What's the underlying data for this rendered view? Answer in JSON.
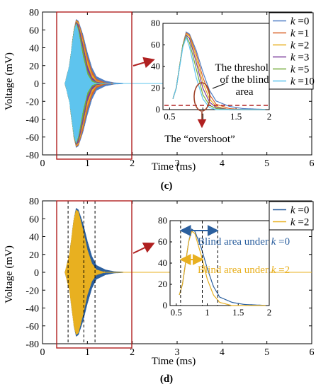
{
  "chart_data": [
    {
      "type": "line",
      "panel_label": "(c)",
      "xlabel": "Time (ms)",
      "ylabel": "Voltage (mV)",
      "xlim": [
        0,
        6
      ],
      "ylim": [
        -80,
        80
      ],
      "xticks": [
        "0",
        "1",
        "2",
        "3",
        "4",
        "5",
        "6"
      ],
      "yticks": [
        "80",
        "60",
        "40",
        "20",
        "0",
        "-20",
        "-40",
        "-60",
        "-80"
      ],
      "legend_position": "top-right",
      "series": [
        {
          "name_prefix": "k",
          "name_value": " =0",
          "color": "#4f7ec4",
          "peak": 72,
          "x": [
            0.5,
            0.6,
            0.7,
            0.75,
            0.8,
            0.9,
            1.0,
            1.1,
            1.2,
            1.4,
            1.6,
            2.0
          ],
          "envelope": [
            0,
            20,
            60,
            72,
            70,
            55,
            35,
            18,
            8,
            3,
            1,
            0
          ]
        },
        {
          "name_prefix": "k",
          "name_value": " =1",
          "color": "#d9642a",
          "peak": 71,
          "x": [
            0.5,
            0.6,
            0.7,
            0.75,
            0.8,
            0.9,
            1.0,
            1.1,
            1.2,
            1.4,
            1.6,
            2.0
          ],
          "envelope": [
            0,
            20,
            60,
            71,
            69,
            52,
            30,
            14,
            5,
            1,
            0,
            0
          ]
        },
        {
          "name_prefix": "k",
          "name_value": " =2",
          "color": "#e8b020",
          "peak": 70,
          "x": [
            0.5,
            0.6,
            0.7,
            0.75,
            0.8,
            0.9,
            1.0,
            1.1,
            1.2,
            1.4,
            1.6,
            2.0
          ],
          "envelope": [
            0,
            20,
            60,
            70,
            68,
            48,
            25,
            10,
            3,
            0,
            0,
            0
          ]
        },
        {
          "name_prefix": "k",
          "name_value": " =3",
          "color": "#7b3c9a",
          "peak": 69,
          "x": [
            0.5,
            0.6,
            0.7,
            0.75,
            0.8,
            0.9,
            1.0,
            1.1,
            1.2,
            1.4,
            1.6,
            2.0
          ],
          "envelope": [
            0,
            20,
            60,
            69,
            66,
            44,
            20,
            7,
            2,
            0,
            0,
            0
          ]
        },
        {
          "name_prefix": "k",
          "name_value": " =5",
          "color": "#74ab3c",
          "peak": 68,
          "x": [
            0.5,
            0.6,
            0.7,
            0.75,
            0.8,
            0.9,
            1.0,
            1.1,
            1.2,
            1.4,
            1.6,
            2.0
          ],
          "envelope": [
            0,
            20,
            60,
            68,
            62,
            38,
            14,
            4,
            1,
            0,
            0,
            0
          ]
        },
        {
          "name_prefix": "k",
          "name_value": " =10",
          "color": "#5ec4ee",
          "peak": 67,
          "x": [
            0.5,
            0.6,
            0.7,
            0.75,
            0.8,
            0.9,
            1.0,
            1.1,
            1.2,
            1.4,
            1.6,
            2.0
          ],
          "envelope": [
            0,
            20,
            58,
            67,
            58,
            30,
            10,
            2,
            0,
            0,
            0,
            0
          ]
        }
      ],
      "inset": {
        "xlim": [
          0.4,
          2
        ],
        "ylim": [
          0,
          80
        ],
        "xticks": [
          "0.5",
          "1",
          "1.5",
          "2"
        ],
        "yticks": [
          "80",
          "60",
          "40",
          "20",
          "0"
        ],
        "threshold_label_lines": [
          "The threshold",
          "of the blind",
          "area"
        ],
        "overshoot_label": "The “overshoot”"
      }
    },
    {
      "type": "line",
      "panel_label": "(d)",
      "xlabel": "Time (ms)",
      "ylabel": "Voltage (mV)",
      "xlim": [
        0,
        6
      ],
      "ylim": [
        -80,
        80
      ],
      "xticks": [
        "0",
        "1",
        "2",
        "3",
        "4",
        "5",
        "6"
      ],
      "yticks": [
        "80",
        "60",
        "40",
        "20",
        "0",
        "-20",
        "-40",
        "-60",
        "-80"
      ],
      "legend_position": "top-right",
      "series": [
        {
          "name_prefix": "k",
          "name_value": " =0",
          "color": "#2b5f9e",
          "peak": 72,
          "x": [
            0.5,
            0.6,
            0.7,
            0.75,
            0.8,
            0.9,
            1.0,
            1.1,
            1.2,
            1.4,
            1.6,
            2.0
          ],
          "envelope": [
            0,
            20,
            60,
            72,
            70,
            55,
            35,
            18,
            8,
            3,
            1,
            0
          ]
        },
        {
          "name_prefix": "k",
          "name_value": " =2",
          "color": "#e8b020",
          "peak": 70,
          "x": [
            0.5,
            0.6,
            0.7,
            0.75,
            0.8,
            0.9,
            1.0,
            1.1,
            1.2,
            1.4,
            1.6,
            2.0
          ],
          "envelope": [
            0,
            20,
            60,
            70,
            68,
            48,
            25,
            10,
            3,
            0,
            0,
            0
          ]
        }
      ],
      "blind_area_lines_ms": [
        0.57,
        0.92,
        1.17
      ],
      "inset": {
        "xlim": [
          0.4,
          2
        ],
        "ylim": [
          0,
          80
        ],
        "xticks": [
          "0.5",
          "1",
          "1.5",
          "2"
        ],
        "yticks": [
          "80",
          "60",
          "40",
          "20",
          "0"
        ],
        "annotation_k0_prefix": "Blind area under ",
        "annotation_k0_var": "k",
        "annotation_k0_value": " =0",
        "annotation_k2_prefix": "Blind area under ",
        "annotation_k2_var": "k",
        "annotation_k2_value": " =2"
      }
    }
  ]
}
